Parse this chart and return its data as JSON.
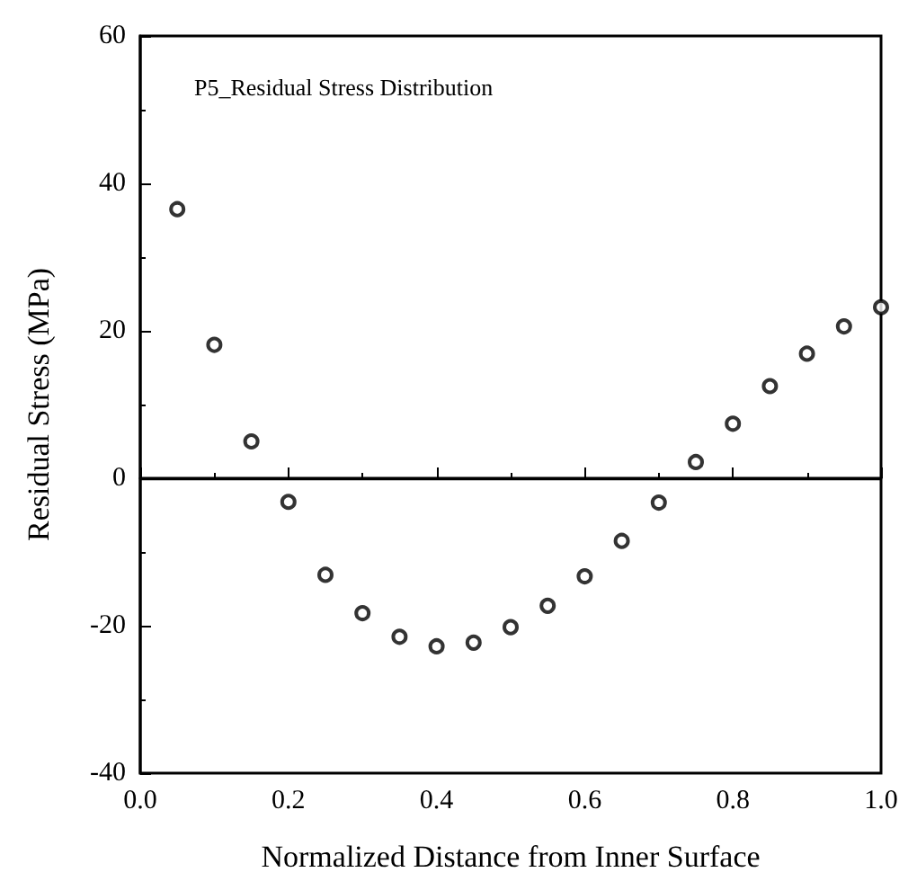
{
  "chart_data": {
    "type": "scatter",
    "xlabel": "Normalized Distance from Inner Surface",
    "ylabel": "Residual Stress (MPa)",
    "annotations": [
      "P5_Residual Stress Distribution"
    ],
    "x": [
      0.05,
      0.1,
      0.15,
      0.2,
      0.25,
      0.3,
      0.35,
      0.4,
      0.45,
      0.5,
      0.55,
      0.6,
      0.65,
      0.7,
      0.75,
      0.8,
      0.85,
      0.9,
      0.95,
      1.0
    ],
    "series": [
      {
        "color": "#000000",
        "values": [
          36.5,
          18.1,
          5.0,
          -3.2,
          -13.1,
          -18.3,
          -21.5,
          -22.8,
          -22.3,
          -20.2,
          -17.3,
          -13.3,
          -8.5,
          -3.3,
          2.2,
          7.4,
          12.5,
          16.9,
          20.6,
          23.2
        ]
      }
    ],
    "xlim": [
      0,
      1
    ],
    "xticks": [
      {
        "value": 0,
        "label": "0.0"
      },
      0.2,
      0.4,
      0.6,
      0.8,
      {
        "value": 1,
        "label": "1.0"
      }
    ],
    "ylim": [
      -40,
      60
    ],
    "yticks": [
      -40,
      -20,
      0,
      20,
      40,
      60
    ],
    "ref_lines": [
      {
        "axis": "y",
        "value": 0,
        "color": "#000000",
        "line_style": "solid"
      }
    ],
    "marker": "circle",
    "grid": false
  }
}
